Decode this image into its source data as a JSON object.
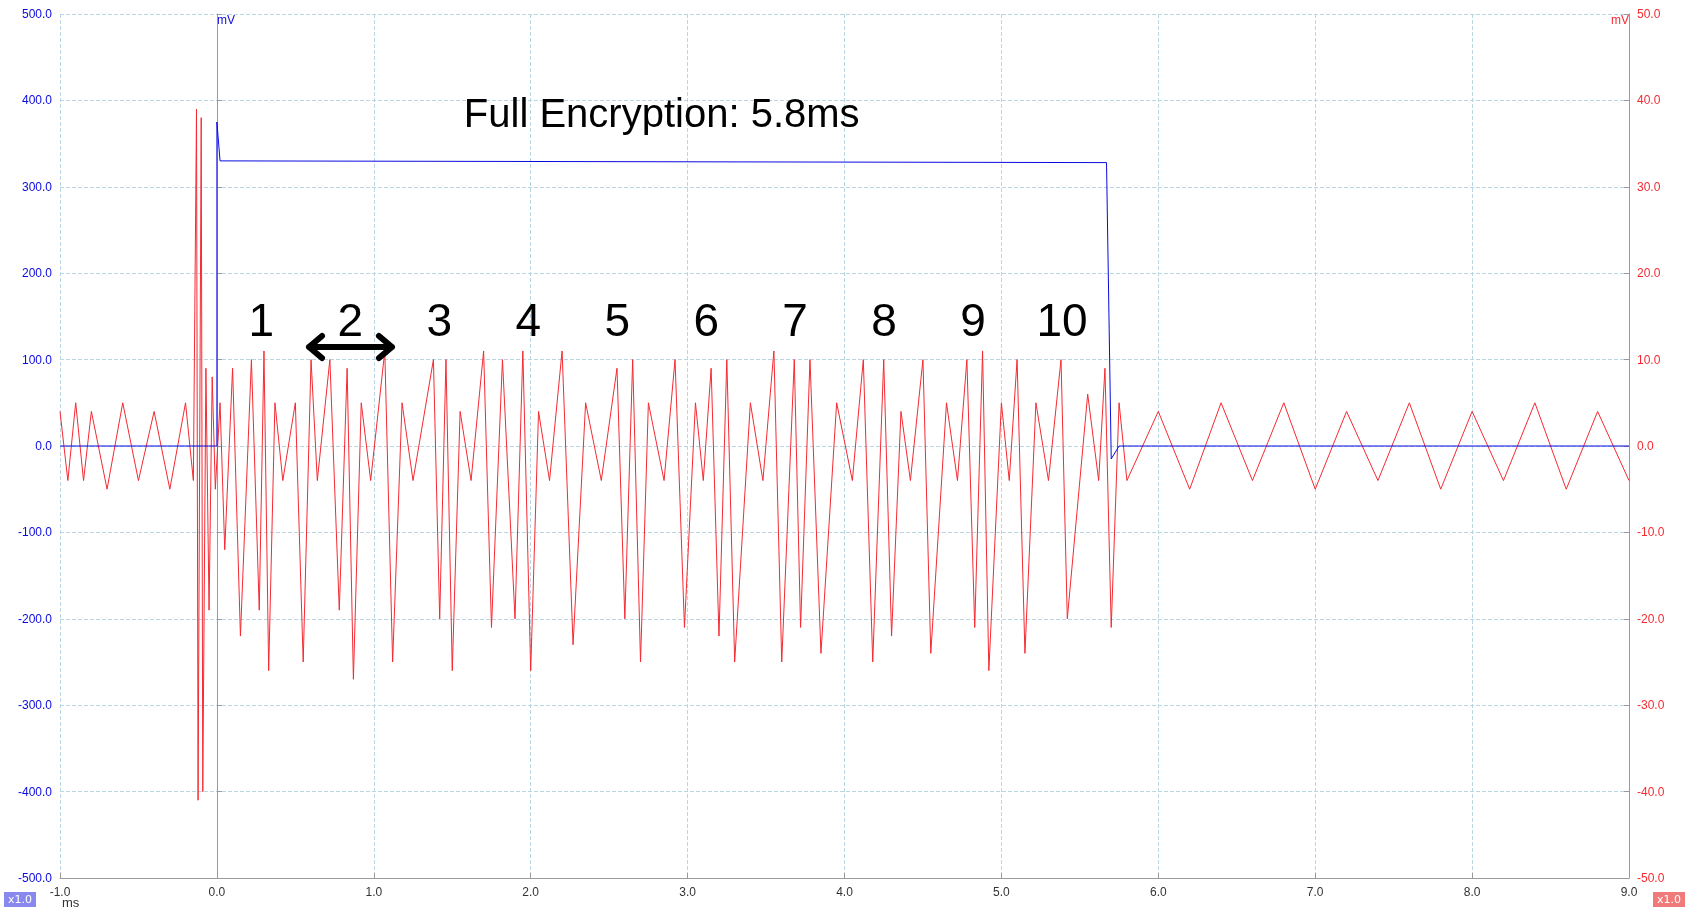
{
  "chart_data": {
    "type": "line",
    "xlabel": "ms",
    "ylabel": "mV",
    "y2label": "mV",
    "xlim": [
      -1,
      9
    ],
    "xticks": [
      {
        "value": -1,
        "label": "-1.0"
      },
      {
        "value": 0,
        "label": "0.0"
      },
      {
        "value": 1,
        "label": "1.0"
      },
      {
        "value": 2,
        "label": "2.0"
      },
      {
        "value": 3,
        "label": "3.0"
      },
      {
        "value": 4,
        "label": "4.0"
      },
      {
        "value": 5,
        "label": "5.0"
      },
      {
        "value": 6,
        "label": "6.0"
      },
      {
        "value": 7,
        "label": "7.0"
      },
      {
        "value": 8,
        "label": "8.0"
      },
      {
        "value": 9,
        "label": "9.0"
      }
    ],
    "ylim": [
      -500,
      500
    ],
    "yticks": [
      {
        "value": -500,
        "label": "-500.0"
      },
      {
        "value": -400,
        "label": "-400.0"
      },
      {
        "value": -300,
        "label": "-300.0"
      },
      {
        "value": -200,
        "label": "-200.0"
      },
      {
        "value": -100,
        "label": "-100.0"
      },
      {
        "value": 0,
        "label": "0.0"
      },
      {
        "value": 100,
        "label": "100.0"
      },
      {
        "value": 200,
        "label": "200.0"
      },
      {
        "value": 300,
        "label": "300.0"
      },
      {
        "value": 400,
        "label": "400.0"
      },
      {
        "value": 500,
        "label": "500.0"
      }
    ],
    "y2lim": [
      -50,
      50
    ],
    "y2ticks": [
      {
        "value": -50,
        "label": "-50.0"
      },
      {
        "value": -40,
        "label": "-40.0"
      },
      {
        "value": -30,
        "label": "-30.0"
      },
      {
        "value": -20,
        "label": "-20.0"
      },
      {
        "value": -10,
        "label": "-10.0"
      },
      {
        "value": 0,
        "label": "0.0"
      },
      {
        "value": 10,
        "label": "10.0"
      },
      {
        "value": 20,
        "label": "20.0"
      },
      {
        "value": 30,
        "label": "30.0"
      },
      {
        "value": 40,
        "label": "40.0"
      },
      {
        "value": 50,
        "label": "50.0"
      }
    ],
    "grid": true,
    "series": [
      {
        "color": "#f52a32",
        "axis": "y2",
        "x": [
          -1.0,
          -0.95,
          -0.9,
          -0.85,
          -0.8,
          -0.7,
          -0.6,
          -0.5,
          -0.4,
          -0.3,
          -0.2,
          -0.15,
          -0.13,
          -0.12,
          -0.1,
          -0.09,
          -0.07,
          -0.05,
          -0.03,
          -0.01,
          0.02,
          0.05,
          0.1,
          0.15,
          0.22,
          0.27,
          0.3,
          0.33,
          0.37,
          0.42,
          0.5,
          0.55,
          0.6,
          0.64,
          0.72,
          0.78,
          0.83,
          0.87,
          0.92,
          0.98,
          1.07,
          1.12,
          1.18,
          1.25,
          1.38,
          1.42,
          1.46,
          1.5,
          1.55,
          1.62,
          1.7,
          1.75,
          1.82,
          1.9,
          1.95,
          2.0,
          2.05,
          2.12,
          2.2,
          2.27,
          2.35,
          2.45,
          2.55,
          2.6,
          2.65,
          2.7,
          2.75,
          2.85,
          2.92,
          2.98,
          3.05,
          3.1,
          3.15,
          3.2,
          3.25,
          3.3,
          3.4,
          3.48,
          3.55,
          3.6,
          3.68,
          3.72,
          3.78,
          3.85,
          3.95,
          4.05,
          4.12,
          4.18,
          4.25,
          4.3,
          4.36,
          4.42,
          4.5,
          4.55,
          4.65,
          4.72,
          4.78,
          4.83,
          4.88,
          4.92,
          5.0,
          5.05,
          5.1,
          5.15,
          5.22,
          5.3,
          5.38,
          5.42,
          5.55,
          5.62,
          5.66,
          5.7,
          5.75,
          5.8,
          6.0,
          6.2,
          6.4,
          6.6,
          6.8,
          7.0,
          7.2,
          7.4,
          7.6,
          7.8,
          8.0,
          8.2,
          8.4,
          8.6,
          8.8,
          9.0
        ],
        "values": [
          4,
          -4,
          5,
          -4,
          4,
          -5,
          5,
          -4,
          4,
          -5,
          5,
          -4,
          39,
          -41,
          38,
          -40,
          9,
          -19,
          8,
          -5,
          5,
          -12,
          9,
          -22,
          10,
          -19,
          11,
          -26,
          5,
          -4,
          5,
          -25,
          10,
          -4,
          10,
          -19,
          9,
          -27,
          5,
          -4,
          11,
          -25,
          5,
          -4,
          10,
          -20,
          10,
          -26,
          4,
          -4,
          11,
          -21,
          10,
          -20,
          11,
          -26,
          4,
          -4,
          11,
          -23,
          5,
          -4,
          9,
          -20,
          10,
          -25,
          5,
          -4,
          10,
          -21,
          5,
          -4,
          9,
          -22,
          10,
          -25,
          5,
          -4,
          11,
          -25,
          10,
          -21,
          10,
          -24,
          5,
          -4,
          10,
          -25,
          10,
          -22,
          4,
          -4,
          10,
          -24,
          5,
          -4,
          10,
          -21,
          11,
          -26,
          5,
          -4,
          10,
          -24,
          5,
          -4,
          10,
          -20,
          6,
          -4,
          9,
          -21,
          5,
          -4,
          4,
          -5,
          5,
          -4,
          5,
          -5,
          4,
          -4,
          5,
          -5,
          4,
          -4,
          5,
          -5,
          4,
          -4
        ]
      },
      {
        "color": "#0a0ae0",
        "x": [
          -1,
          0,
          0,
          0.02,
          5.67,
          5.67,
          5.7,
          5.75,
          9
        ],
        "values": [
          0,
          0,
          375,
          330,
          328,
          328,
          -15,
          0,
          0
        ]
      }
    ],
    "annotations": [
      "Full Encryption: 5.8ms",
      "1",
      "2",
      "3",
      "4",
      "5",
      "6",
      "7",
      "8",
      "9",
      "10",
      "x1.0",
      "x1.0"
    ]
  }
}
